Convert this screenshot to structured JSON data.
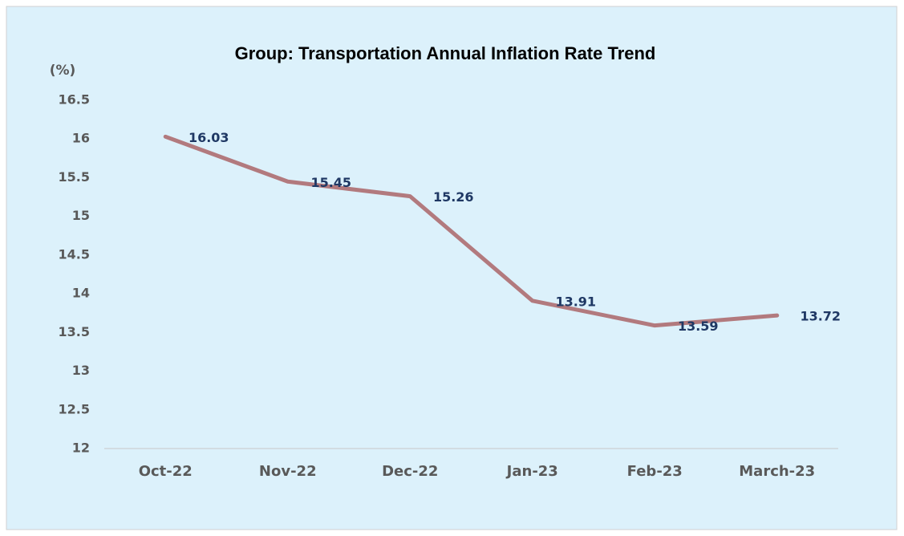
{
  "chart_data": {
    "type": "line",
    "title": "Group: Transportation Annual Inflation Rate Trend",
    "y_label": "(%)",
    "categories": [
      "Oct-22",
      "Nov-22",
      "Dec-22",
      "Jan-23",
      "Feb-23",
      "March-23"
    ],
    "values": [
      16.03,
      15.45,
      15.26,
      13.91,
      13.59,
      13.72
    ],
    "color": "#b27a7e",
    "label_color": "#1f3864",
    "ylim": [
      12,
      16.5
    ],
    "yticks": [
      12,
      12.5,
      13,
      13.5,
      14,
      14.5,
      15,
      15.5,
      16,
      16.5
    ],
    "grid": false
  }
}
